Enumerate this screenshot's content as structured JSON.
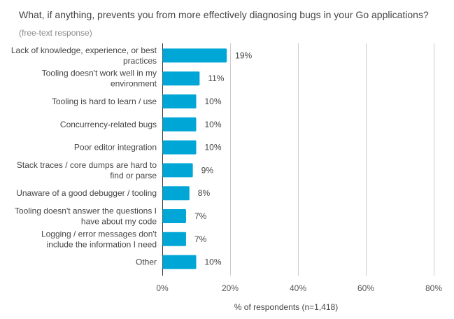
{
  "chart_data": {
    "type": "bar",
    "orientation": "horizontal",
    "title": "What, if anything, prevents you from more effectively diagnosing bugs in your Go applications?",
    "subtitle": "(free-text response)",
    "xlabel": "% of respondents (n=1,418)",
    "ylabel": "",
    "xlim": [
      0,
      80
    ],
    "xticks": [
      0,
      20,
      40,
      60,
      80
    ],
    "xtick_labels": [
      "0%",
      "20%",
      "40%",
      "60%",
      "80%"
    ],
    "grid": true,
    "bar_color": "#00a6d6",
    "categories": [
      [
        "Lack of knowledge, experience, or best",
        "practices"
      ],
      [
        "Tooling doesn't work well in my",
        "environment"
      ],
      [
        "Tooling is hard to learn / use"
      ],
      [
        "Concurrency-related bugs"
      ],
      [
        "Poor editor integration"
      ],
      [
        "Stack traces / core dumps are hard to",
        "find or parse"
      ],
      [
        "Unaware of a good debugger / tooling"
      ],
      [
        "Tooling doesn't answer the questions I",
        "have about my code"
      ],
      [
        "Logging / error messages don't",
        "include the information I need"
      ],
      [
        "Other"
      ]
    ],
    "values": [
      19,
      11,
      10,
      10,
      10,
      9,
      8,
      7,
      7,
      10
    ],
    "value_labels": [
      "19%",
      "11%",
      "10%",
      "10%",
      "10%",
      "9%",
      "8%",
      "7%",
      "7%",
      "10%"
    ]
  }
}
